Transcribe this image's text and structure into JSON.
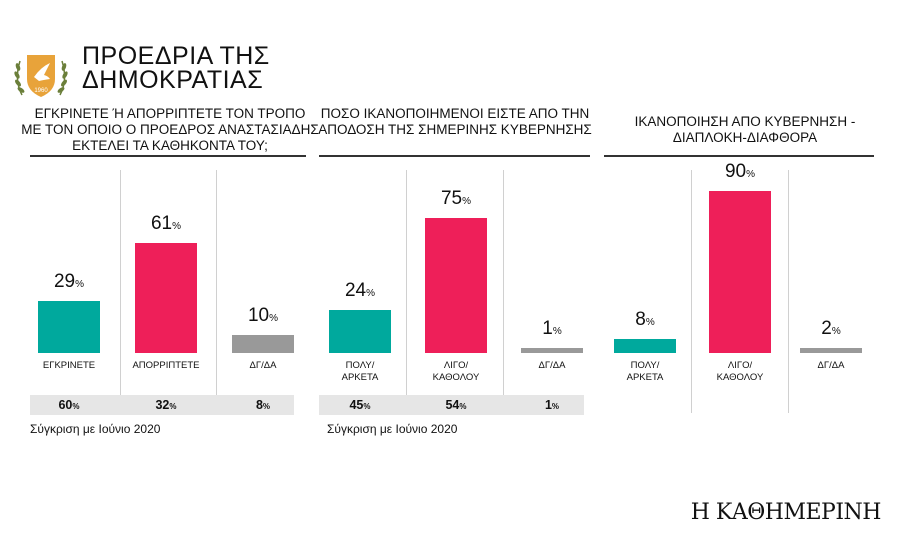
{
  "header": {
    "title_line1": "ΠΡΟΕΔΡΙΑ ΤΗΣ",
    "title_line2": "ΔΗΜΟΚΡΑΤΙΑΣ"
  },
  "colors": {
    "green": "#00a99d",
    "red": "#ee1f59",
    "gray": "#999999"
  },
  "chart_data": [
    {
      "type": "bar",
      "title": "ΕΓΚΡΙΝΕΤΕ Ή ΑΠΟΡΡΙΠΤΕΤΕ ΤΟΝ ΤΡΟΠΟ ΜΕ ΤΟΝ ΟΠΟΙΟ Ο ΠΡΟΕΔΡΟΣ ΑΝΑΣΤΑΣΙΑΔΗΣ ΕΚΤΕΛΕΙ ΤΑ ΚΑΘΗΚΟΝΤΑ ΤΟΥ;",
      "title_lines": [
        "ΕΓΚΡΙΝΕΤΕ Ή ΑΠΟΡΡΙΠΤΕΤΕ ΤΟΝ ΤΡΟΠΟ",
        "ΜΕ ΤΟΝ ΟΠΟΙΟ Ο ΠΡΟΕΔΡΟΣ ΑΝΑΣΤΑΣΙΑΔΗΣ",
        "ΕΚΤΕΛΕΙ ΤΑ ΚΑΘΗΚΟΝΤΑ ΤΟΥ;"
      ],
      "categories": [
        [
          "ΕΓΚΡΙΝΕΤΕ"
        ],
        [
          "ΑΠΟΡΡΙΠΤΕΤΕ"
        ],
        [
          "ΔΓ/ΔΑ"
        ]
      ],
      "values": [
        29,
        61,
        10
      ],
      "colors": [
        "#00a99d",
        "#ee1f59",
        "#999999"
      ],
      "unit": "%",
      "comparison": {
        "label": "Σύγκριση με Ιούνιο 2020",
        "values": [
          60,
          32,
          8
        ]
      }
    },
    {
      "type": "bar",
      "title": "ΠΟΣΟ ΙΚΑΝΟΠΟΙΗΜΕΝΟΙ ΕΙΣΤΕ ΑΠΟ ΤΗΝ ΑΠΟΔΟΣΗ ΤΗΣ ΣΗΜΕΡΙΝΗΣ ΚΥΒΕΡΝΗΣΗΣ",
      "title_lines": [
        "ΠΟΣΟ ΙΚΑΝΟΠΟΙΗΜΕΝΟΙ ΕΙΣΤΕ ΑΠΟ ΤΗΝ",
        "ΑΠΟΔΟΣΗ ΤΗΣ ΣΗΜΕΡΙΝΗΣ ΚΥΒΕΡΝΗΣΗΣ"
      ],
      "categories": [
        [
          "ΠΟΛΥ/",
          "ΑΡΚΕΤΑ"
        ],
        [
          "ΛΙΓΟ/",
          "ΚΑΘΟΛΟΥ"
        ],
        [
          "ΔΓ/ΔΑ"
        ]
      ],
      "values": [
        24,
        75,
        1
      ],
      "colors": [
        "#00a99d",
        "#ee1f59",
        "#999999"
      ],
      "unit": "%",
      "comparison": {
        "label": "Σύγκριση με Ιούνιο 2020",
        "values": [
          45,
          54,
          1
        ]
      }
    },
    {
      "type": "bar",
      "title": "ΙΚΑΝΟΠΟΙΗΣΗ ΑΠΟ ΚΥΒΕΡΝΗΣΗ - ΔΙΑΠΛΟΚΗ-ΔΙΑΦΘΟΡΑ",
      "title_lines": [
        "ΙΚΑΝΟΠΟΙΗΣΗ ΑΠΟ ΚΥΒΕΡΝΗΣΗ -",
        "ΔΙΑΠΛΟΚΗ-ΔΙΑΦΘΟΡΑ"
      ],
      "categories": [
        [
          "ΠΟΛΥ/",
          "ΑΡΚΕΤΑ"
        ],
        [
          "ΛΙΓΟ/",
          "ΚΑΘΟΛΟΥ"
        ],
        [
          "ΔΓ/ΔΑ"
        ]
      ],
      "values": [
        8,
        90,
        2
      ],
      "colors": [
        "#00a99d",
        "#ee1f59",
        "#999999"
      ],
      "unit": "%"
    }
  ],
  "footer": {
    "logo": "Η ΚΑΘΗΜΕΡΙΝΗ"
  }
}
